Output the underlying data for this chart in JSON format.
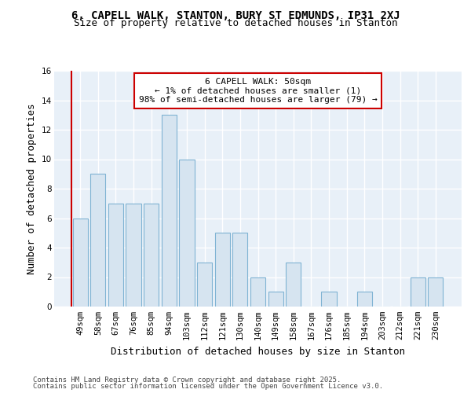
{
  "title": "6, CAPELL WALK, STANTON, BURY ST EDMUNDS, IP31 2XJ",
  "subtitle": "Size of property relative to detached houses in Stanton",
  "xlabel": "Distribution of detached houses by size in Stanton",
  "ylabel": "Number of detached properties",
  "categories": [
    "49sqm",
    "58sqm",
    "67sqm",
    "76sqm",
    "85sqm",
    "94sqm",
    "103sqm",
    "112sqm",
    "121sqm",
    "130sqm",
    "140sqm",
    "149sqm",
    "158sqm",
    "167sqm",
    "176sqm",
    "185sqm",
    "194sqm",
    "203sqm",
    "212sqm",
    "221sqm",
    "230sqm"
  ],
  "values": [
    6,
    9,
    7,
    7,
    7,
    13,
    10,
    3,
    5,
    5,
    2,
    1,
    3,
    0,
    1,
    0,
    1,
    0,
    0,
    2,
    2
  ],
  "bar_color": "#d6e4f0",
  "bar_edge_color": "#7fb3d3",
  "annotation_box_color": "#ffffff",
  "annotation_box_edge": "#cc0000",
  "annotation_line1": "6 CAPELL WALK: 50sqm",
  "annotation_line2": "← 1% of detached houses are smaller (1)",
  "annotation_line3": "98% of semi-detached houses are larger (79) →",
  "ylim": [
    0,
    16
  ],
  "yticks": [
    0,
    2,
    4,
    6,
    8,
    10,
    12,
    14,
    16
  ],
  "fig_background_color": "#ffffff",
  "plot_background_color": "#e8f0f8",
  "grid_color": "#ffffff",
  "red_line_color": "#cc0000",
  "footer_line1": "Contains HM Land Registry data © Crown copyright and database right 2025.",
  "footer_line2": "Contains public sector information licensed under the Open Government Licence v3.0.",
  "title_fontsize": 10,
  "subtitle_fontsize": 9,
  "axis_label_fontsize": 9,
  "tick_fontsize": 7.5,
  "annotation_fontsize": 8,
  "footer_fontsize": 6.5
}
